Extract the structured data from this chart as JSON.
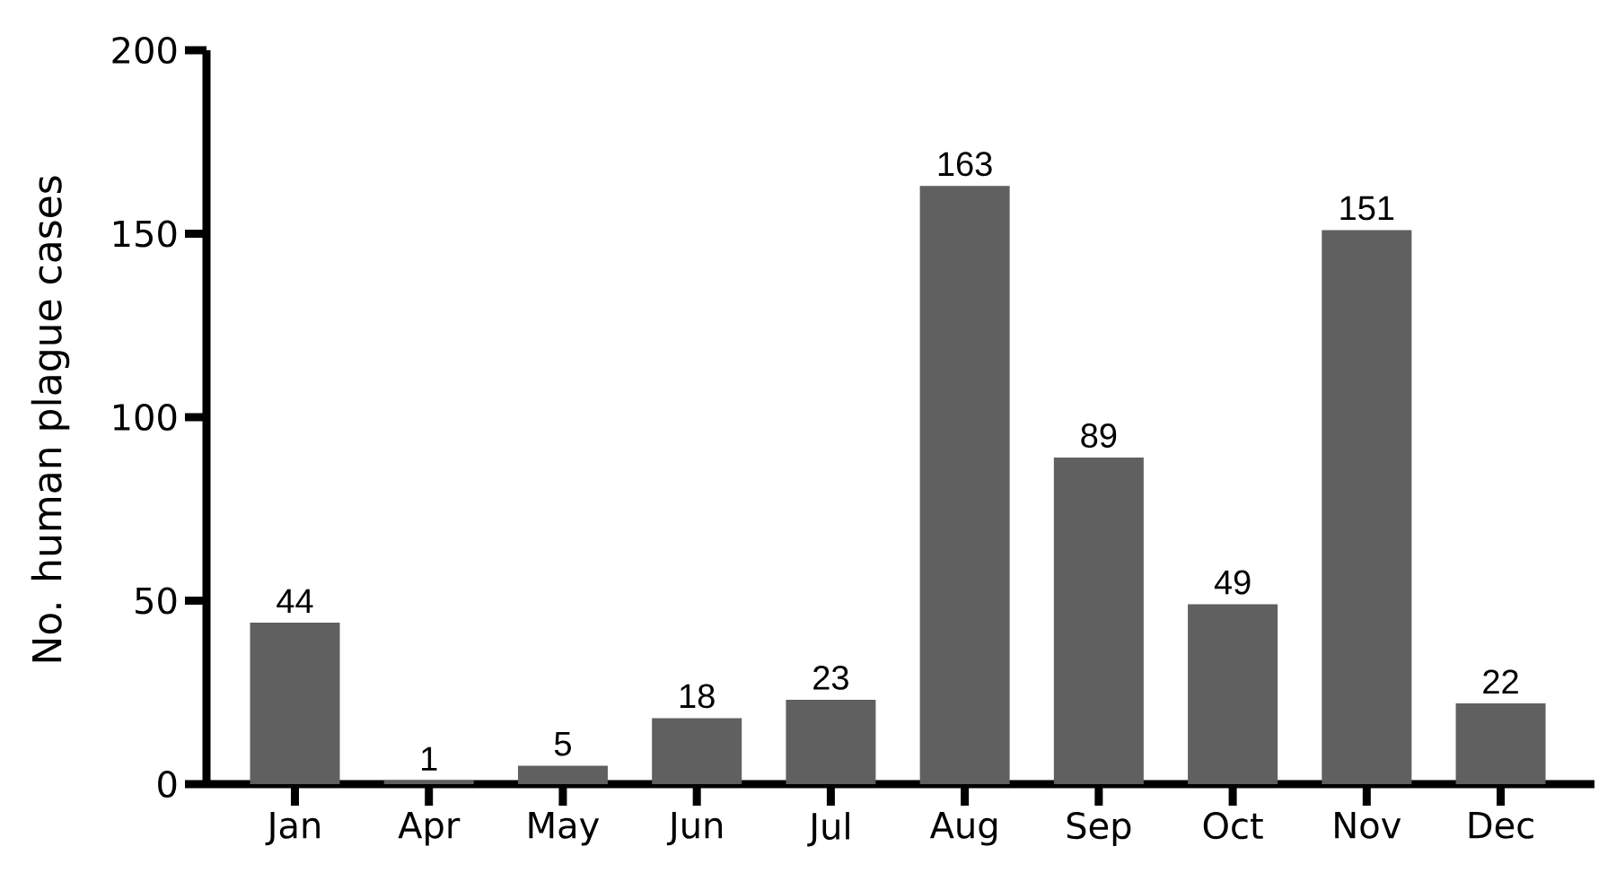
{
  "chart_data": {
    "type": "bar",
    "ylabel": "No. human plague cases",
    "categories": [
      "Jan",
      "Apr",
      "May",
      "Jun",
      "Jul",
      "Aug",
      "Sep",
      "Oct",
      "Nov",
      "Dec"
    ],
    "values": [
      44,
      1,
      5,
      18,
      23,
      163,
      89,
      49,
      151,
      22
    ],
    "color": "#606060",
    "ylim": [
      0,
      200
    ],
    "yticks": [
      0,
      50,
      100,
      150,
      200
    ],
    "data_labels": true
  }
}
